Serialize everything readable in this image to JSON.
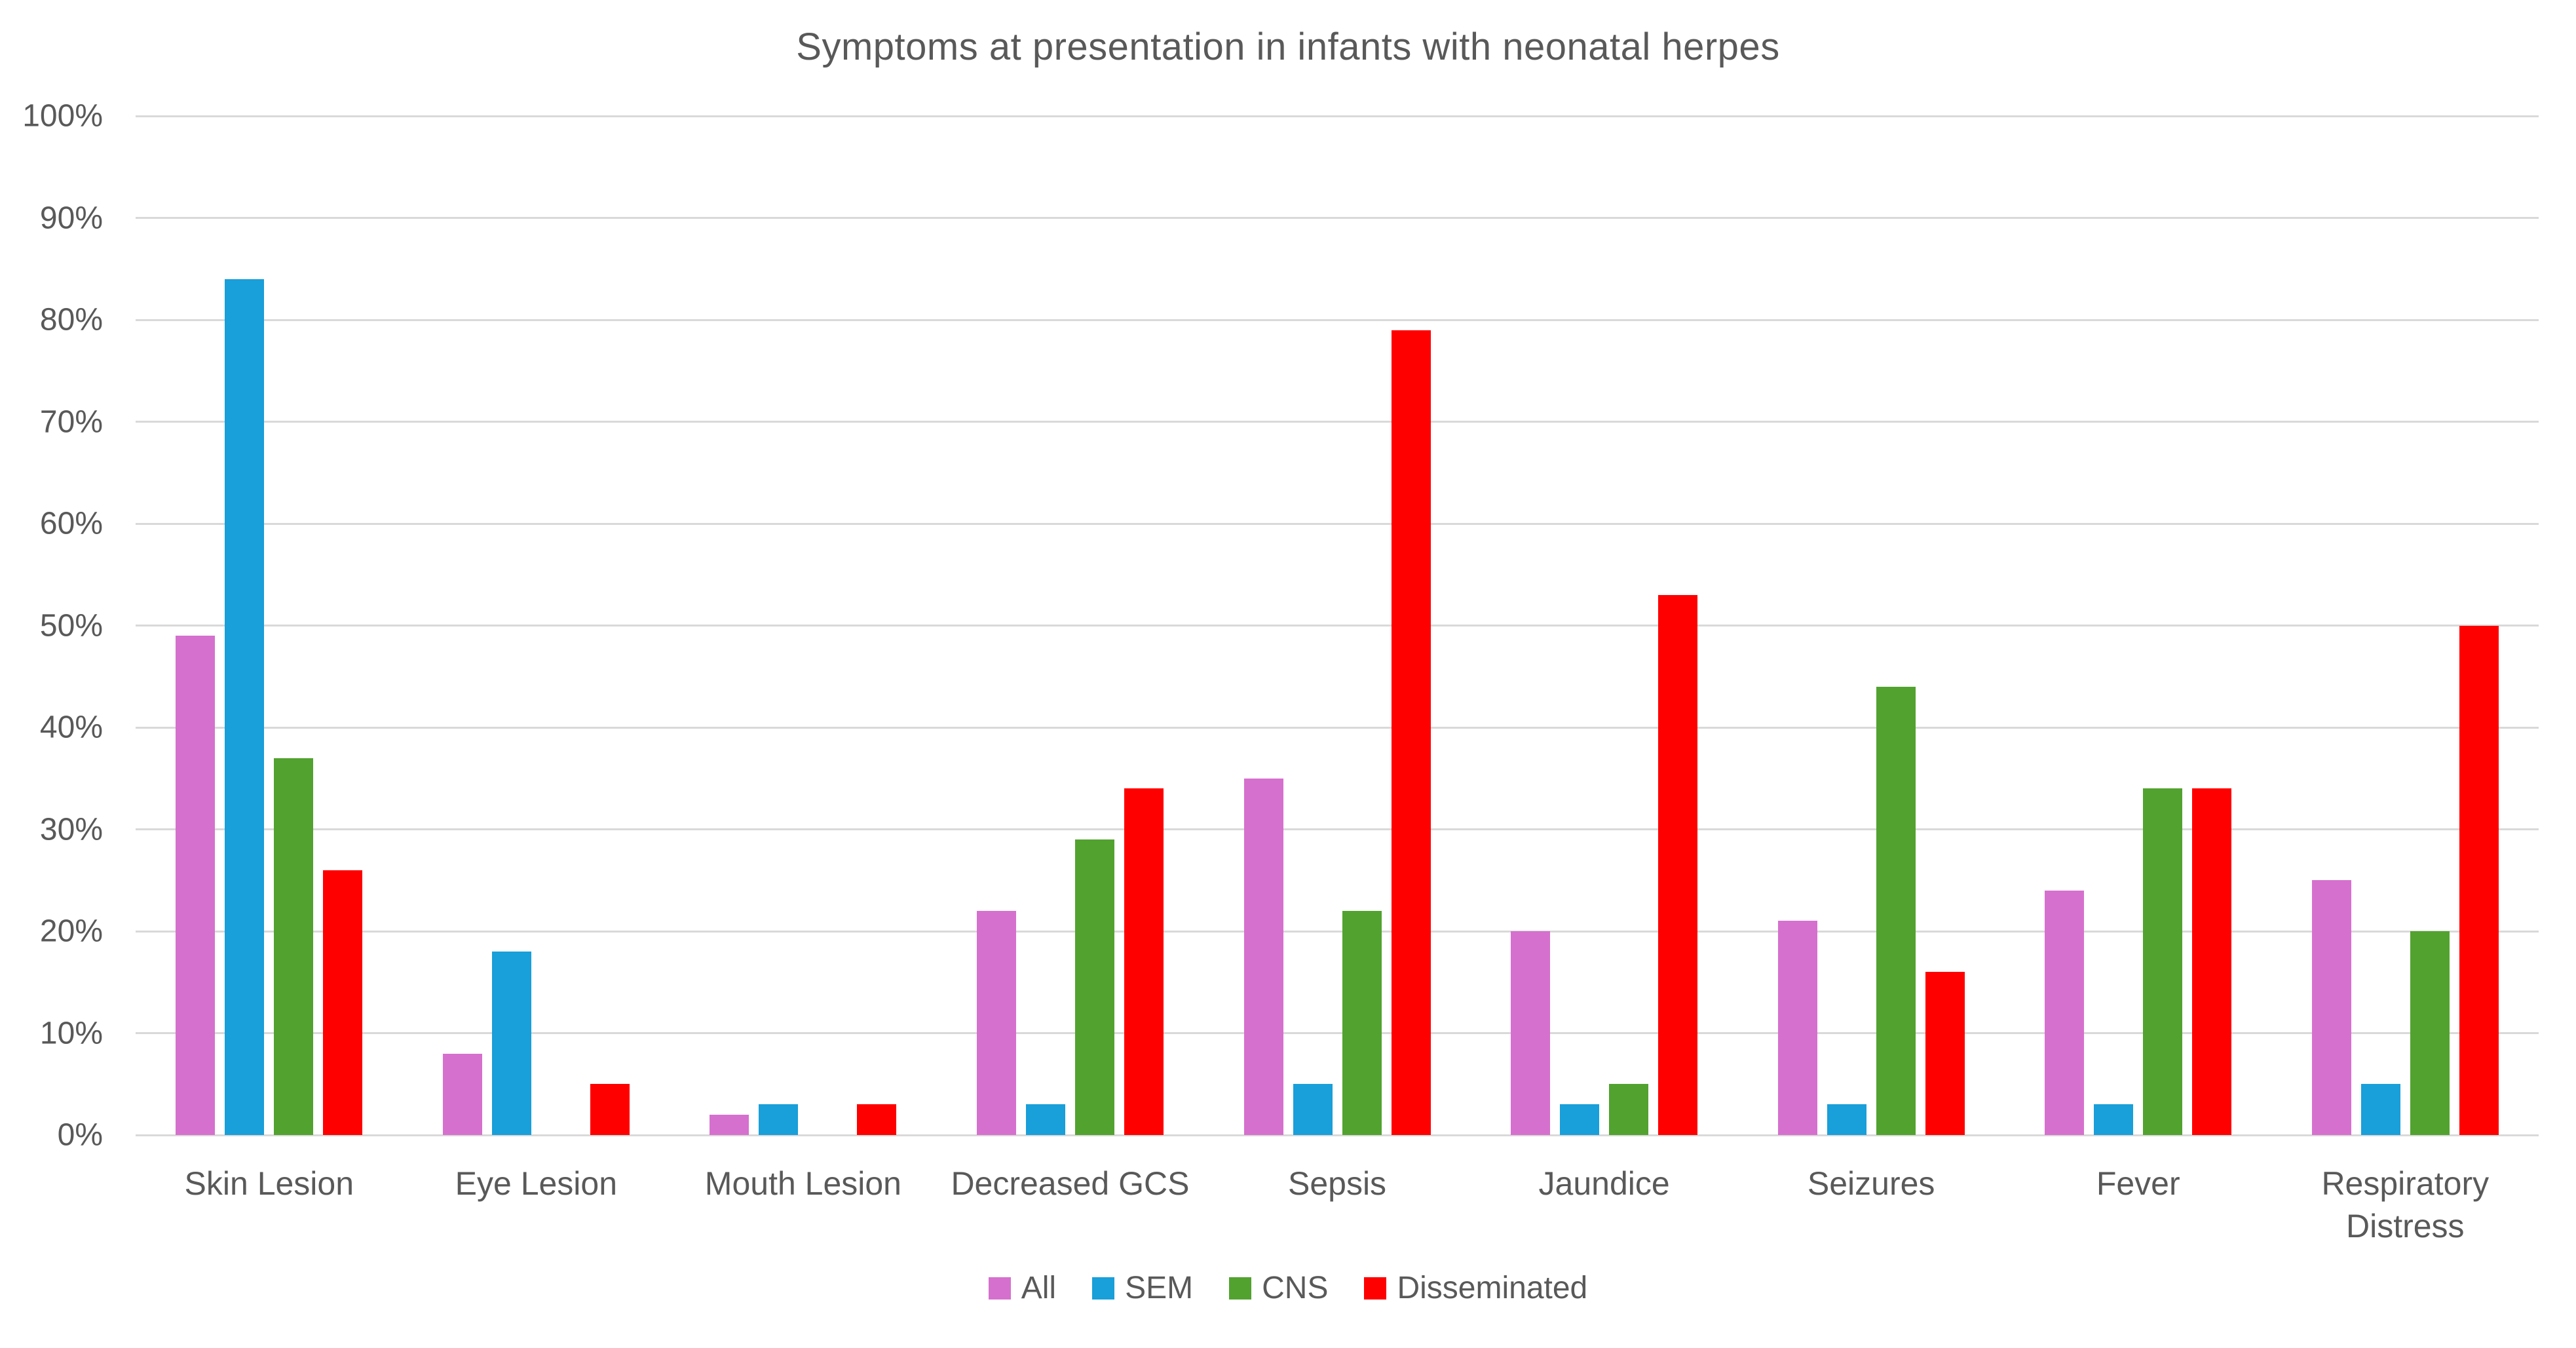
{
  "title": "Symptoms at presentation in infants with neonatal herpes",
  "colors": {
    "background": "#FFFFFF",
    "text": "#595959",
    "gridline": "#D9D9D9",
    "all": "#D670CE",
    "sem": "#199FD9",
    "cns": "#52A22F",
    "disseminated": "#FF0000"
  },
  "chart_data": {
    "type": "bar",
    "title": "Symptoms at presentation in infants with neonatal herpes",
    "categories": [
      "Skin Lesion",
      "Eye Lesion",
      "Mouth Lesion",
      "Decreased GCS",
      "Sepsis",
      "Jaundice",
      "Seizures",
      "Fever",
      "Respiratory Distress"
    ],
    "series": [
      {
        "name": "All",
        "color": "#D670CE",
        "values": [
          49,
          8,
          2,
          22,
          35,
          20,
          21,
          24,
          25
        ]
      },
      {
        "name": "SEM",
        "color": "#199FD9",
        "values": [
          84,
          18,
          3,
          3,
          5,
          3,
          3,
          3,
          5
        ]
      },
      {
        "name": "CNS",
        "color": "#52A22F",
        "values": [
          37,
          0,
          0,
          29,
          22,
          5,
          44,
          34,
          20
        ]
      },
      {
        "name": "Disseminated",
        "color": "#FF0000",
        "values": [
          26,
          5,
          3,
          34,
          79,
          53,
          16,
          34,
          50
        ]
      }
    ],
    "xlabel": "",
    "ylabel": "",
    "ylim": [
      0,
      100
    ],
    "ytick_step": 10,
    "ytick_labels": [
      "0%",
      "10%",
      "20%",
      "30%",
      "40%",
      "50%",
      "60%",
      "70%",
      "80%",
      "90%",
      "100%"
    ],
    "grid": true,
    "legend_position": "bottom",
    "legend_entries": [
      "All",
      "SEM",
      "CNS",
      "Disseminated"
    ]
  }
}
